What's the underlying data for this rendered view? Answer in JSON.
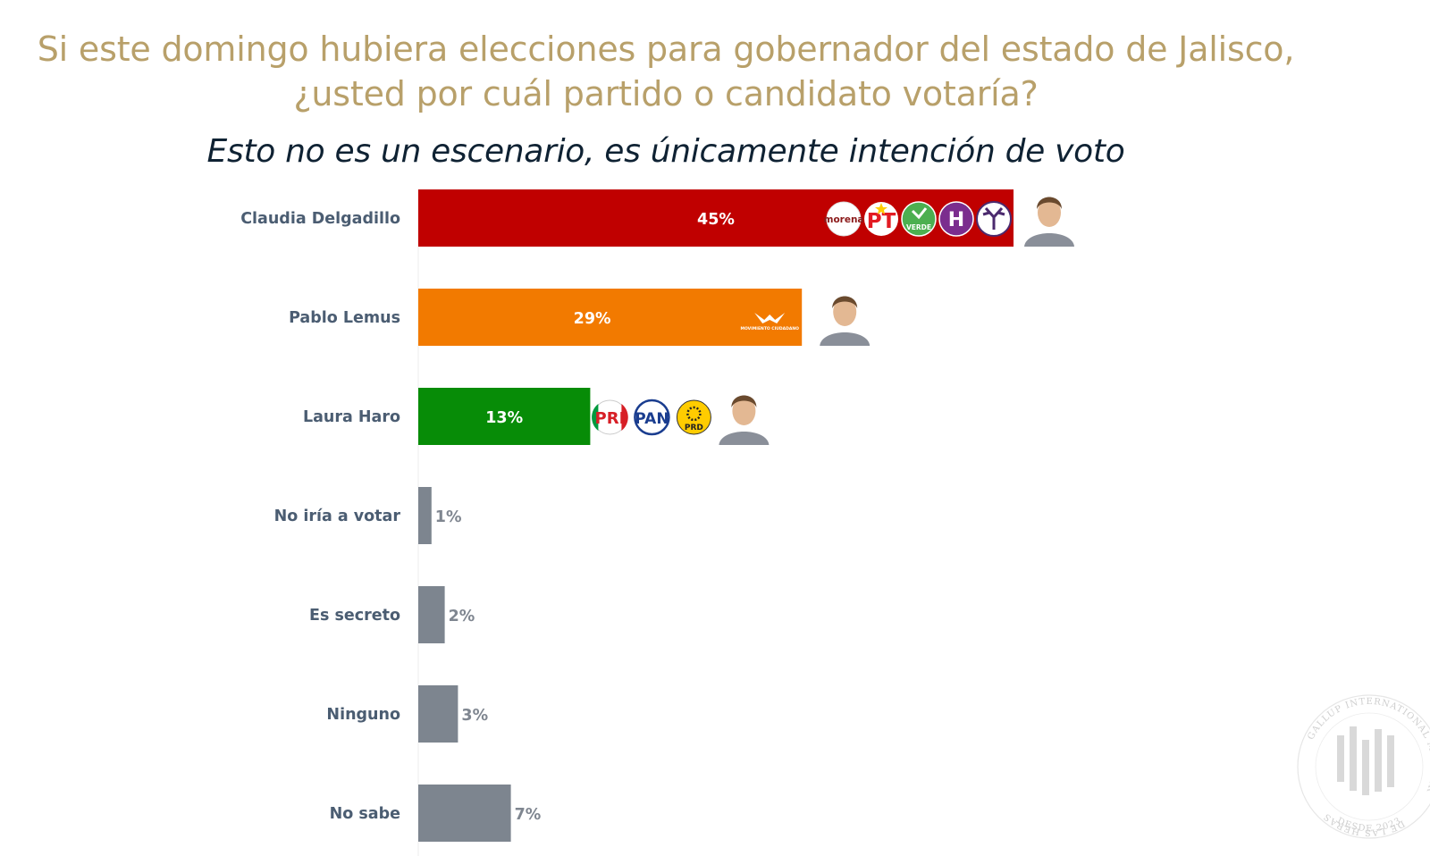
{
  "header": {
    "title_line1": "Si este domingo hubiera elecciones para gobernador del estado de Jalisco,",
    "title_line2": "¿usted por cuál partido o candidato votaría?",
    "subtitle": "Esto no es un escenario, es únicamente intención de voto"
  },
  "chart_data": {
    "type": "bar",
    "orientation": "horizontal",
    "title": "Si este domingo hubiera elecciones para gobernador del estado de Jalisco, ¿usted por cuál partido o candidato votaría?",
    "subtitle": "Esto no es un escenario, es únicamente intención de voto",
    "categories": [
      "Claudia Delgadillo",
      "Pablo Lemus",
      "Laura Haro",
      "No iría a votar",
      "Es secreto",
      "Ninguno",
      "No sabe"
    ],
    "values": [
      45,
      29,
      13,
      1,
      2,
      3,
      7
    ],
    "value_labels": [
      "45%",
      "29%",
      "13%",
      "1%",
      "2%",
      "3%",
      "7%"
    ],
    "unit": "%",
    "colors": [
      "#c00000",
      "#f27a00",
      "#078c07",
      "#7d858f",
      "#7d858f",
      "#7d858f",
      "#7d858f"
    ],
    "xlim": [
      0,
      50
    ],
    "grid": false,
    "legend": "none",
    "party_logos": [
      [
        {
          "icon": "morena-logo",
          "text": "morena",
          "color": "#8b1a1a"
        },
        {
          "icon": "pt-logo",
          "text": "PT",
          "color": "#e31b23"
        },
        {
          "icon": "verde-logo",
          "text": "VERDE",
          "color": "#4caf50"
        },
        {
          "icon": "hagamos-logo",
          "text": "H",
          "color": "#7b2d8e"
        },
        {
          "icon": "futuro-logo",
          "text": "",
          "color": "#4b2a6e"
        }
      ],
      [
        {
          "icon": "movimiento-ciudadano-logo",
          "text": "MOVIMIENTO CIUDADANO",
          "color": "#f27a00"
        }
      ],
      [
        {
          "icon": "pri-logo",
          "text": "PRI",
          "color": "#d71f26"
        },
        {
          "icon": "pan-logo",
          "text": "PAN",
          "color": "#1a3d8f"
        },
        {
          "icon": "prd-logo",
          "text": "PRD",
          "color": "#ffcc00"
        }
      ],
      [],
      [],
      [],
      []
    ],
    "candidate_photos": [
      "candidate-photo-icon",
      "candidate-photo-icon",
      "candidate-photo-icon",
      "",
      "",
      "",
      ""
    ]
  },
  "watermark": {
    "icon": "de-las-heras-seal-icon",
    "ring_text": "GALLUP INTERNATIONAL MEMBER",
    "side_text": "DE LAS HERAS",
    "bottom_text": "DESDE 2023"
  }
}
